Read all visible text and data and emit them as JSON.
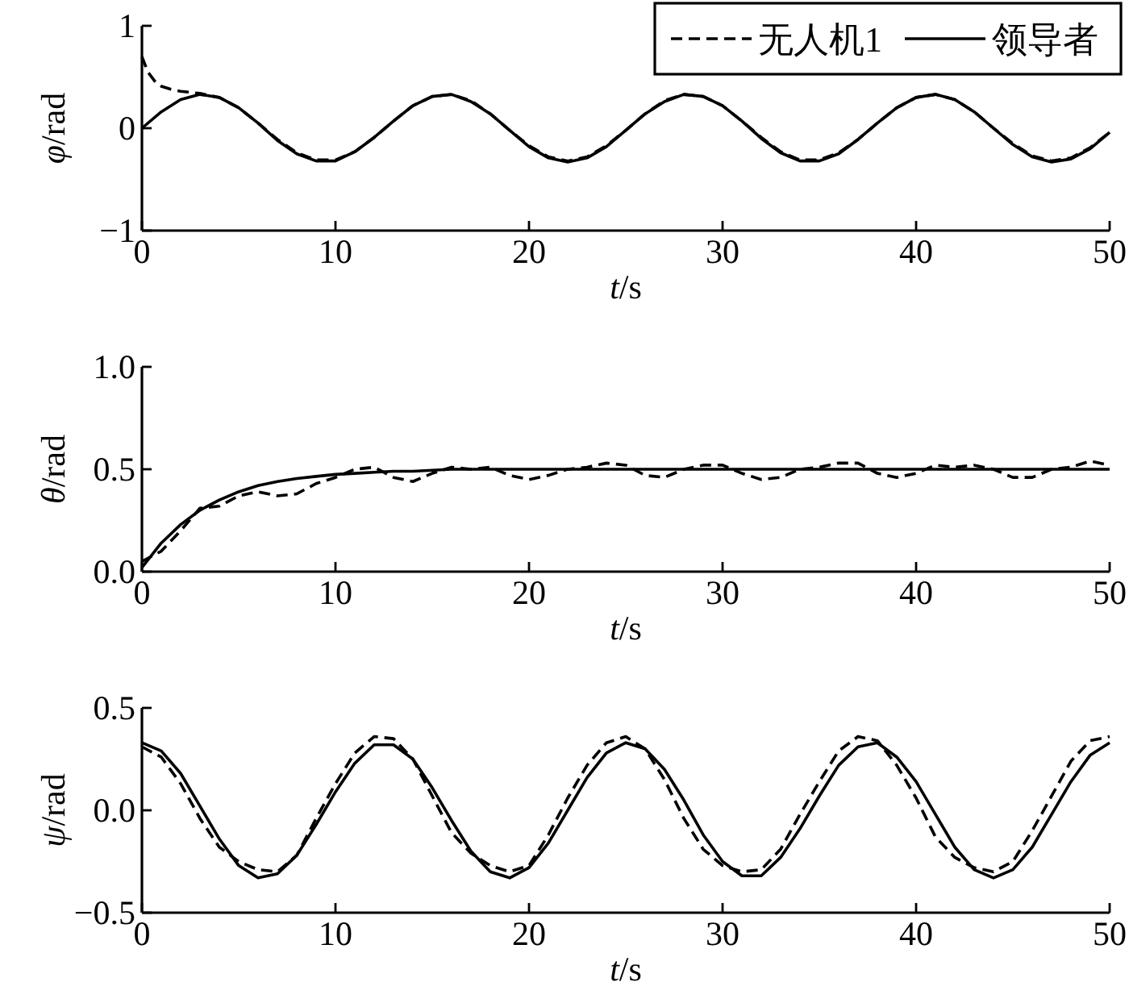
{
  "chart_data": [
    {
      "type": "line",
      "xlabel": "t/s",
      "ylabel": "φ/rad",
      "xlim": [
        0,
        50
      ],
      "xticks": [
        0,
        10,
        20,
        30,
        40,
        50
      ],
      "ylim": [
        -1,
        1
      ],
      "yticks": [
        {
          "value": -1,
          "label": "−1"
        },
        0,
        1
      ],
      "legend": "top right",
      "x": [
        0,
        1,
        2,
        3,
        4,
        5,
        6,
        7,
        8,
        9,
        10,
        11,
        12,
        13,
        14,
        15,
        16,
        17,
        18,
        19,
        20,
        21,
        22,
        23,
        24,
        25,
        26,
        27,
        28,
        29,
        30,
        31,
        32,
        33,
        34,
        35,
        36,
        37,
        38,
        39,
        40,
        41,
        42,
        43,
        44,
        45,
        46,
        47,
        48,
        49,
        50
      ],
      "series": [
        {
          "name": "无人机1",
          "color": "#000000",
          "line_style": "dashed",
          "x": [
            0,
            0.3,
            0.7,
            1,
            1.5,
            2,
            2.5,
            3,
            4,
            5,
            6,
            7,
            8,
            9,
            10,
            11,
            12,
            13,
            14,
            15,
            16,
            17,
            18,
            19,
            20,
            21,
            22,
            23,
            24,
            25,
            26,
            27,
            28,
            29,
            30,
            31,
            32,
            33,
            34,
            35,
            36,
            37,
            38,
            39,
            40,
            41,
            42,
            43,
            44,
            45,
            46,
            47,
            48,
            49,
            50
          ],
          "values": [
            0.7,
            0.55,
            0.45,
            0.41,
            0.38,
            0.36,
            0.35,
            0.34,
            0.3,
            0.2,
            0.05,
            -0.11,
            -0.24,
            -0.31,
            -0.31,
            -0.23,
            -0.09,
            0.07,
            0.22,
            0.31,
            0.33,
            0.27,
            0.14,
            -0.02,
            -0.17,
            -0.28,
            -0.32,
            -0.28,
            -0.17,
            -0.02,
            0.14,
            0.27,
            0.33,
            0.31,
            0.22,
            0.07,
            -0.09,
            -0.23,
            -0.31,
            -0.31,
            -0.24,
            -0.11,
            0.05,
            0.2,
            0.3,
            0.33,
            0.28,
            0.16,
            0,
            -0.15,
            -0.27,
            -0.32,
            -0.29,
            -0.19,
            -0.04
          ]
        },
        {
          "name": "领导者",
          "color": "#000000",
          "line_style": "solid",
          "values": [
            0,
            0.16,
            0.28,
            0.33,
            0.3,
            0.2,
            0.05,
            -0.12,
            -0.25,
            -0.32,
            -0.32,
            -0.23,
            -0.09,
            0.07,
            0.22,
            0.31,
            0.33,
            0.26,
            0.14,
            -0.02,
            -0.18,
            -0.29,
            -0.33,
            -0.29,
            -0.18,
            -0.02,
            0.14,
            0.26,
            0.33,
            0.31,
            0.22,
            0.07,
            -0.1,
            -0.24,
            -0.32,
            -0.32,
            -0.25,
            -0.11,
            0.05,
            0.2,
            0.3,
            0.33,
            0.28,
            0.16,
            0,
            -0.16,
            -0.28,
            -0.33,
            -0.3,
            -0.2,
            -0.04
          ]
        }
      ]
    },
    {
      "type": "line",
      "xlabel": "t/s",
      "ylabel": "θ/rad",
      "xlim": [
        0,
        50
      ],
      "xticks": [
        0,
        10,
        20,
        30,
        40,
        50
      ],
      "ylim": [
        0,
        1
      ],
      "yticks": [
        {
          "value": 0,
          "label": "0.0"
        },
        0.5,
        {
          "value": 1,
          "label": "1.0"
        }
      ],
      "x": [
        0,
        1,
        2,
        3,
        4,
        5,
        6,
        7,
        8,
        9,
        10,
        11,
        12,
        13,
        14,
        15,
        16,
        17,
        18,
        19,
        20,
        21,
        22,
        23,
        24,
        25,
        26,
        27,
        28,
        29,
        30,
        31,
        32,
        33,
        34,
        35,
        36,
        37,
        38,
        39,
        40,
        41,
        42,
        43,
        44,
        45,
        46,
        47,
        48,
        49,
        50
      ],
      "series": [
        {
          "color": "#000000",
          "line_style": "dashed",
          "values": [
            0.05,
            0.1,
            0.2,
            0.31,
            0.32,
            0.37,
            0.39,
            0.37,
            0.38,
            0.43,
            0.46,
            0.5,
            0.51,
            0.46,
            0.44,
            0.48,
            0.51,
            0.5,
            0.51,
            0.47,
            0.45,
            0.47,
            0.5,
            0.51,
            0.53,
            0.52,
            0.47,
            0.46,
            0.5,
            0.52,
            0.52,
            0.48,
            0.45,
            0.46,
            0.5,
            0.51,
            0.53,
            0.53,
            0.48,
            0.46,
            0.48,
            0.52,
            0.51,
            0.52,
            0.5,
            0.46,
            0.46,
            0.5,
            0.51,
            0.54,
            0.52
          ]
        },
        {
          "color": "#000000",
          "line_style": "solid",
          "values": [
            0.02,
            0.14,
            0.23,
            0.3,
            0.35,
            0.39,
            0.42,
            0.44,
            0.455,
            0.465,
            0.475,
            0.48,
            0.485,
            0.49,
            0.49,
            0.495,
            0.5,
            0.5,
            0.5,
            0.5,
            0.5,
            0.5,
            0.5,
            0.5,
            0.5,
            0.5,
            0.5,
            0.5,
            0.5,
            0.5,
            0.5,
            0.5,
            0.5,
            0.5,
            0.5,
            0.5,
            0.5,
            0.5,
            0.5,
            0.5,
            0.5,
            0.5,
            0.5,
            0.5,
            0.5,
            0.5,
            0.5,
            0.5,
            0.5,
            0.5,
            0.5
          ]
        }
      ]
    },
    {
      "type": "line",
      "xlabel": "t/s",
      "ylabel": "ψ/rad",
      "xlim": [
        0,
        50
      ],
      "xticks": [
        0,
        10,
        20,
        30,
        40,
        50
      ],
      "ylim": [
        -0.5,
        0.5
      ],
      "yticks": [
        {
          "value": -0.5,
          "label": "−0.5"
        },
        {
          "value": 0,
          "label": "0.0"
        },
        0.5
      ],
      "x": [
        0,
        1,
        2,
        3,
        4,
        5,
        6,
        7,
        8,
        9,
        10,
        11,
        12,
        13,
        14,
        15,
        16,
        17,
        18,
        19,
        20,
        21,
        22,
        23,
        24,
        25,
        26,
        27,
        28,
        29,
        30,
        31,
        32,
        33,
        34,
        35,
        36,
        37,
        38,
        39,
        40,
        41,
        42,
        43,
        44,
        45,
        46,
        47,
        48,
        49,
        50
      ],
      "series": [
        {
          "color": "#000000",
          "line_style": "dashed",
          "values": [
            0.31,
            0.26,
            0.13,
            -0.04,
            -0.18,
            -0.25,
            -0.29,
            -0.3,
            -0.22,
            -0.04,
            0.13,
            0.28,
            0.36,
            0.35,
            0.25,
            0.07,
            -0.11,
            -0.21,
            -0.27,
            -0.3,
            -0.27,
            -0.12,
            0.06,
            0.22,
            0.33,
            0.36,
            0.3,
            0.15,
            -0.04,
            -0.19,
            -0.27,
            -0.3,
            -0.29,
            -0.19,
            -0.02,
            0.14,
            0.29,
            0.36,
            0.34,
            0.22,
            0.06,
            -0.13,
            -0.23,
            -0.28,
            -0.3,
            -0.25,
            -0.1,
            0.07,
            0.24,
            0.34,
            0.36
          ]
        },
        {
          "color": "#000000",
          "line_style": "solid",
          "values": [
            0.33,
            0.29,
            0.18,
            0.02,
            -0.14,
            -0.27,
            -0.33,
            -0.31,
            -0.22,
            -0.07,
            0.09,
            0.23,
            0.32,
            0.32,
            0.25,
            0.11,
            -0.05,
            -0.2,
            -0.3,
            -0.33,
            -0.28,
            -0.16,
            0,
            0.16,
            0.28,
            0.33,
            0.3,
            0.2,
            0.05,
            -0.12,
            -0.25,
            -0.32,
            -0.32,
            -0.23,
            -0.09,
            0.07,
            0.22,
            0.31,
            0.33,
            0.26,
            0.14,
            -0.02,
            -0.18,
            -0.29,
            -0.33,
            -0.29,
            -0.18,
            -0.02,
            0.14,
            0.27,
            0.33
          ]
        }
      ]
    }
  ]
}
